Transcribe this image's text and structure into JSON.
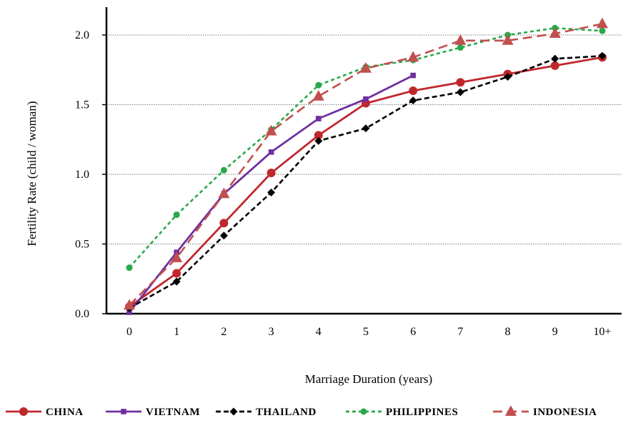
{
  "chart_data": {
    "type": "line",
    "title": "",
    "xlabel": "Marriage Duration (years)",
    "ylabel": "Fertility Rate (child / woman)",
    "categories": [
      "0",
      "1",
      "2",
      "3",
      "4",
      "5",
      "6",
      "7",
      "8",
      "9",
      "10+"
    ],
    "yticks": [
      "0.0",
      "0.5",
      "1.0",
      "1.5",
      "2.0"
    ],
    "ylim": [
      0,
      2.2
    ],
    "grid": "horizontal",
    "legend_position": "bottom",
    "series": [
      {
        "name": "CHINA",
        "color": "#c0272d",
        "dash": "solid",
        "marker": "circle",
        "values": [
          0.05,
          0.29,
          0.65,
          1.01,
          1.28,
          1.51,
          1.6,
          1.66,
          1.72,
          1.78,
          1.84
        ]
      },
      {
        "name": "VIETNAM",
        "color": "#7030a0",
        "dash": "solid",
        "marker": "square",
        "values": [
          0.01,
          0.44,
          0.86,
          1.16,
          1.4,
          1.54,
          1.71,
          null,
          null,
          null,
          null
        ]
      },
      {
        "name": "THAILAND",
        "color": "#000000",
        "dash": "dashed",
        "marker": "diamond",
        "values": [
          0.04,
          0.23,
          0.56,
          0.87,
          1.24,
          1.33,
          1.53,
          1.59,
          1.7,
          1.83,
          1.85
        ]
      },
      {
        "name": "PHILIPPINES",
        "color": "#2aa84a",
        "dash": "dotted",
        "marker": "circle",
        "values": [
          0.33,
          0.71,
          1.03,
          1.32,
          1.64,
          1.77,
          1.82,
          1.91,
          2.0,
          2.05,
          2.03
        ]
      },
      {
        "name": "INDONESIA",
        "color": "#c0504d",
        "dash": "longdash",
        "marker": "triangle",
        "values": [
          0.06,
          0.4,
          0.86,
          1.31,
          1.56,
          1.76,
          1.84,
          1.96,
          1.96,
          2.01,
          2.08
        ]
      }
    ]
  }
}
